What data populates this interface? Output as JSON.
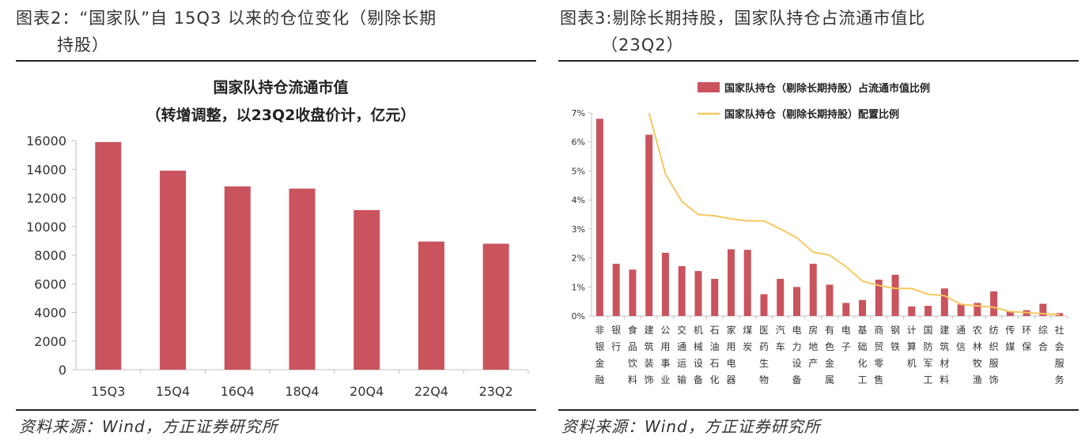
{
  "left": {
    "figure_title_line1": "图表2：“国家队”自 15Q3 以来的仓位变化（剔除长期",
    "figure_title_line2": "持股）",
    "source": "资料来源：Wind，方正证券研究所"
  },
  "right": {
    "figure_title_line1": "图表3:剔除长期持股，国家队持仓占流通市值比",
    "figure_title_line2": "（23Q2）",
    "source": "资料来源：Wind，方正证券研究所"
  },
  "colors": {
    "bar": "#c9545d",
    "line": "#f6c85f",
    "axis": "#bfbfbf",
    "text": "#333333"
  },
  "chart_data": [
    {
      "type": "bar",
      "title": "国家队持仓流通市值",
      "subtitle": "（转增调整，以23Q2收盘价计，亿元）",
      "categories": [
        "15Q3",
        "15Q4",
        "16Q4",
        "18Q4",
        "20Q4",
        "22Q4",
        "23Q2"
      ],
      "values": [
        15900,
        13900,
        12800,
        12650,
        11150,
        8950,
        8800
      ],
      "yticks": [
        "0",
        "2000",
        "4000",
        "6000",
        "8000",
        "10000",
        "12000",
        "14000",
        "16000"
      ],
      "ylim": [
        0,
        16000
      ],
      "xlabel": "",
      "ylabel": ""
    },
    {
      "type": "bar+line",
      "legend": [
        "国家队持仓（剔除长期持股）占流通市值比例",
        "国家队持仓（剔除长期持股）配置比例"
      ],
      "categories": [
        "非银金融",
        "银行",
        "食品饮料",
        "建筑装饰",
        "公用事业",
        "交通运输",
        "机械设备",
        "石油石化",
        "家用电器",
        "煤炭",
        "医药生物",
        "汽车",
        "电力设备",
        "房地产",
        "有色金属",
        "电子",
        "基础化工",
        "商贸零售",
        "钢铁",
        "计算机",
        "国防军工",
        "建筑材料",
        "通信",
        "农林牧渔",
        "纺织服饰",
        "传媒",
        "环保",
        "综合",
        "社会服务"
      ],
      "series": [
        {
          "name": "国家队持仓（剔除长期持股）占流通市值比例",
          "kind": "bar",
          "values": [
            6.8,
            1.8,
            1.6,
            6.25,
            2.18,
            1.72,
            1.55,
            1.28,
            2.3,
            2.28,
            0.75,
            1.28,
            1.0,
            1.8,
            1.08,
            0.45,
            0.55,
            1.25,
            1.42,
            0.33,
            0.35,
            0.95,
            0.4,
            0.45,
            0.85,
            0.15,
            0.2,
            0.42,
            0.1
          ]
        },
        {
          "name": "国家队持仓（剔除长期持股）配置比例",
          "kind": "line",
          "values": [
            null,
            null,
            null,
            7.0,
            4.9,
            3.95,
            3.5,
            3.45,
            3.35,
            3.28,
            3.28,
            3.0,
            2.7,
            2.2,
            2.1,
            1.7,
            1.2,
            1.05,
            0.95,
            0.95,
            0.75,
            0.7,
            0.4,
            0.35,
            0.3,
            0.15,
            0.12,
            0.08,
            0.05
          ]
        }
      ],
      "yticks": [
        "0%",
        "1%",
        "2%",
        "3%",
        "4%",
        "5%",
        "6%",
        "7%"
      ],
      "ylim": [
        0,
        7
      ],
      "xlabel": "",
      "ylabel": ""
    }
  ]
}
